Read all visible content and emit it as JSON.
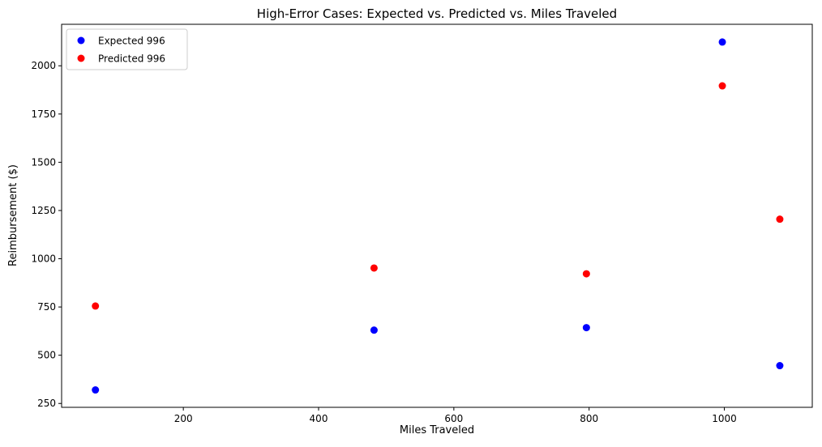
{
  "chart_data": {
    "type": "scatter",
    "title": "High-Error Cases: Expected vs. Predicted vs. Miles Traveled",
    "xlabel": "Miles Traveled",
    "ylabel": "Reimbursement ($)",
    "xlim": [
      20,
      1130
    ],
    "ylim": [
      230,
      2215
    ],
    "xticks": [
      200,
      400,
      600,
      800,
      1000
    ],
    "yticks": [
      250,
      500,
      750,
      1000,
      1250,
      1500,
      1750,
      2000
    ],
    "grid": false,
    "legend": "top-left",
    "series": [
      {
        "name": "Expected 996",
        "color": "#0000ff",
        "points": [
          {
            "x": 70,
            "y": 320
          },
          {
            "x": 482,
            "y": 630
          },
          {
            "x": 796,
            "y": 643
          },
          {
            "x": 997,
            "y": 2123
          },
          {
            "x": 1082,
            "y": 446
          }
        ]
      },
      {
        "name": "Predicted 996",
        "color": "#ff0000",
        "points": [
          {
            "x": 70,
            "y": 755
          },
          {
            "x": 482,
            "y": 952
          },
          {
            "x": 796,
            "y": 922
          },
          {
            "x": 997,
            "y": 1896
          },
          {
            "x": 1082,
            "y": 1205
          }
        ]
      }
    ]
  }
}
